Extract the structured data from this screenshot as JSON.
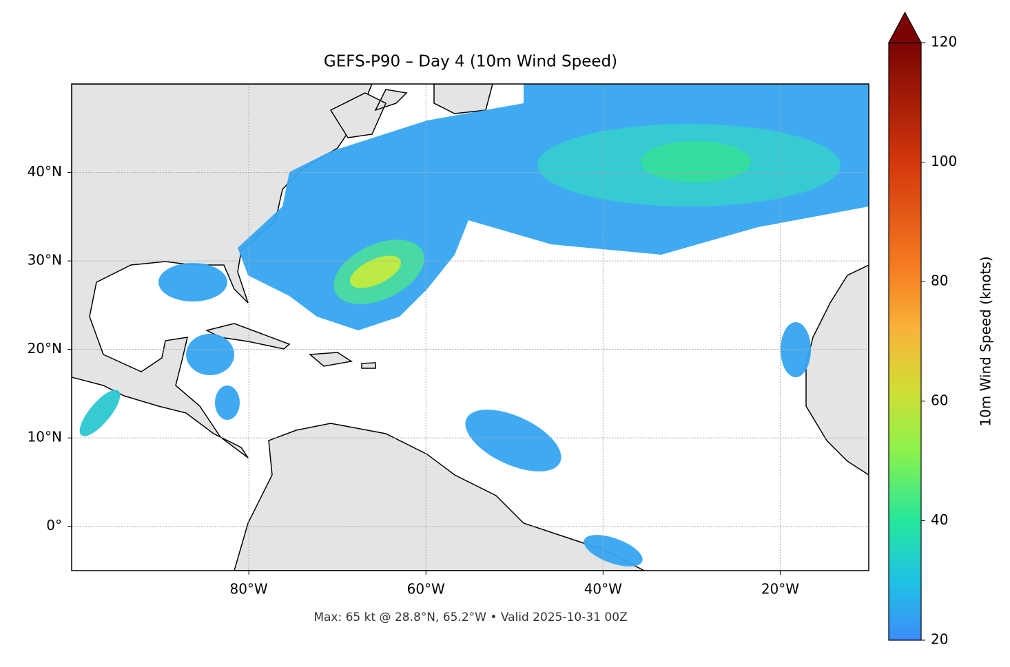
{
  "chart_data": {
    "type": "map",
    "title": "GEFS-P90 – Day 4 (10m Wind Speed)",
    "note": "Max: 65 kt @ 28.8°N, 65.2°W • Valid 2025-10-31 00Z",
    "xlim": [
      -100,
      -10
    ],
    "ylim": [
      -5,
      50
    ],
    "xticks": [
      {
        "value": -80,
        "label": "80°W"
      },
      {
        "value": -60,
        "label": "60°W"
      },
      {
        "value": -40,
        "label": "40°W"
      },
      {
        "value": -20,
        "label": "20°W"
      }
    ],
    "yticks": [
      {
        "value": 0,
        "label": "0°"
      },
      {
        "value": 10,
        "label": "10°N"
      },
      {
        "value": 20,
        "label": "20°N"
      },
      {
        "value": 30,
        "label": "30°N"
      },
      {
        "value": 40,
        "label": "40°N"
      }
    ],
    "grid": true,
    "colorbar": {
      "label": "10m Wind Speed (knots)",
      "lim": [
        20,
        120
      ],
      "ticks": [
        20,
        40,
        60,
        80,
        100,
        120
      ],
      "extend": "max"
    }
  }
}
